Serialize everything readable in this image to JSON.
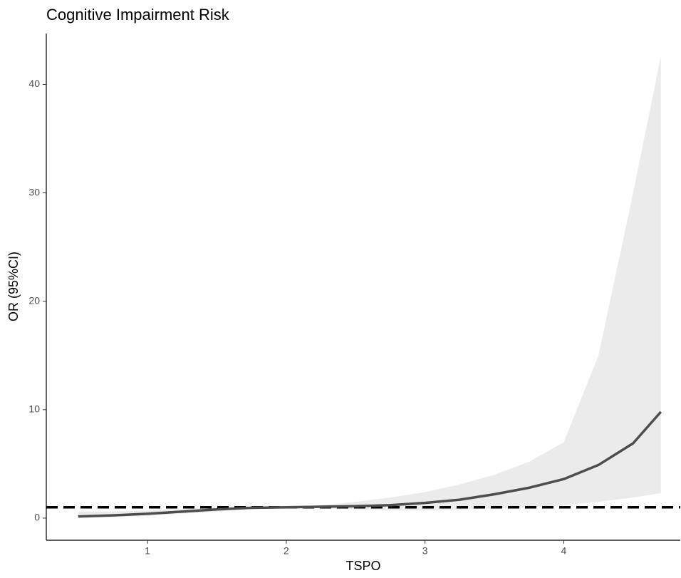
{
  "chart_data": {
    "type": "line",
    "title": "Cognitive Impairment Risk",
    "x_label": "TSPO",
    "y_label": "OR (95%CI)",
    "x": [
      0.5,
      0.75,
      1.0,
      1.25,
      1.5,
      1.75,
      2.0,
      2.25,
      2.5,
      2.75,
      3.0,
      3.25,
      3.5,
      3.75,
      4.0,
      4.25,
      4.5,
      4.7
    ],
    "values": [
      0.15,
      0.25,
      0.4,
      0.6,
      0.8,
      0.95,
      1.0,
      1.05,
      1.1,
      1.2,
      1.4,
      1.7,
      2.2,
      2.8,
      3.6,
      4.9,
      6.9,
      9.8
    ],
    "lower": [
      0.0,
      0.1,
      0.2,
      0.4,
      0.6,
      0.85,
      1.0,
      0.9,
      0.8,
      0.7,
      0.7,
      0.75,
      0.9,
      1.0,
      1.2,
      1.5,
      1.9,
      2.3
    ],
    "upper": [
      0.6,
      0.6,
      0.7,
      0.85,
      1.0,
      1.05,
      1.0,
      1.2,
      1.5,
      1.9,
      2.4,
      3.1,
      4.0,
      5.2,
      7.0,
      15.0,
      30.0,
      42.6
    ],
    "color": "#4d4d4d",
    "ribbon_color": "#ebebeb",
    "hline": 1,
    "hline_color": "#000000",
    "xlim": [
      0.27,
      4.84
    ],
    "ylim": [
      -2.04,
      44.7
    ],
    "xticks": [
      1,
      2,
      3,
      4
    ],
    "yticks": [
      0,
      10,
      20,
      30,
      40
    ]
  }
}
